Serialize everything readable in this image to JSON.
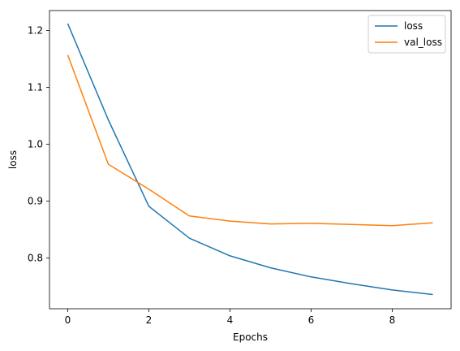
{
  "chart_data": {
    "type": "line",
    "title": "",
    "xlabel": "Epochs",
    "ylabel": "loss",
    "xlim": [
      -0.45,
      9.45
    ],
    "ylim": [
      0.711,
      1.235
    ],
    "xticks": [
      0,
      2,
      4,
      6,
      8
    ],
    "yticks": [
      0.8,
      0.9,
      1.0,
      1.1,
      1.2
    ],
    "xtick_labels": [
      "0",
      "2",
      "4",
      "6",
      "8"
    ],
    "ytick_labels": [
      "0.8",
      "0.9",
      "1.0",
      "1.1",
      "1.2"
    ],
    "grid": false,
    "legend_position": "top-right",
    "x": [
      0,
      1,
      2,
      3,
      4,
      5,
      6,
      7,
      8,
      9
    ],
    "series": [
      {
        "name": "loss",
        "color": "#1f77b4",
        "values": [
          1.212,
          1.043,
          0.891,
          0.835,
          0.804,
          0.783,
          0.767,
          0.755,
          0.744,
          0.736
        ]
      },
      {
        "name": "val_loss",
        "color": "#ff7f0e",
        "values": [
          1.157,
          0.965,
          0.921,
          0.874,
          0.865,
          0.86,
          0.861,
          0.859,
          0.857,
          0.862
        ]
      }
    ]
  }
}
